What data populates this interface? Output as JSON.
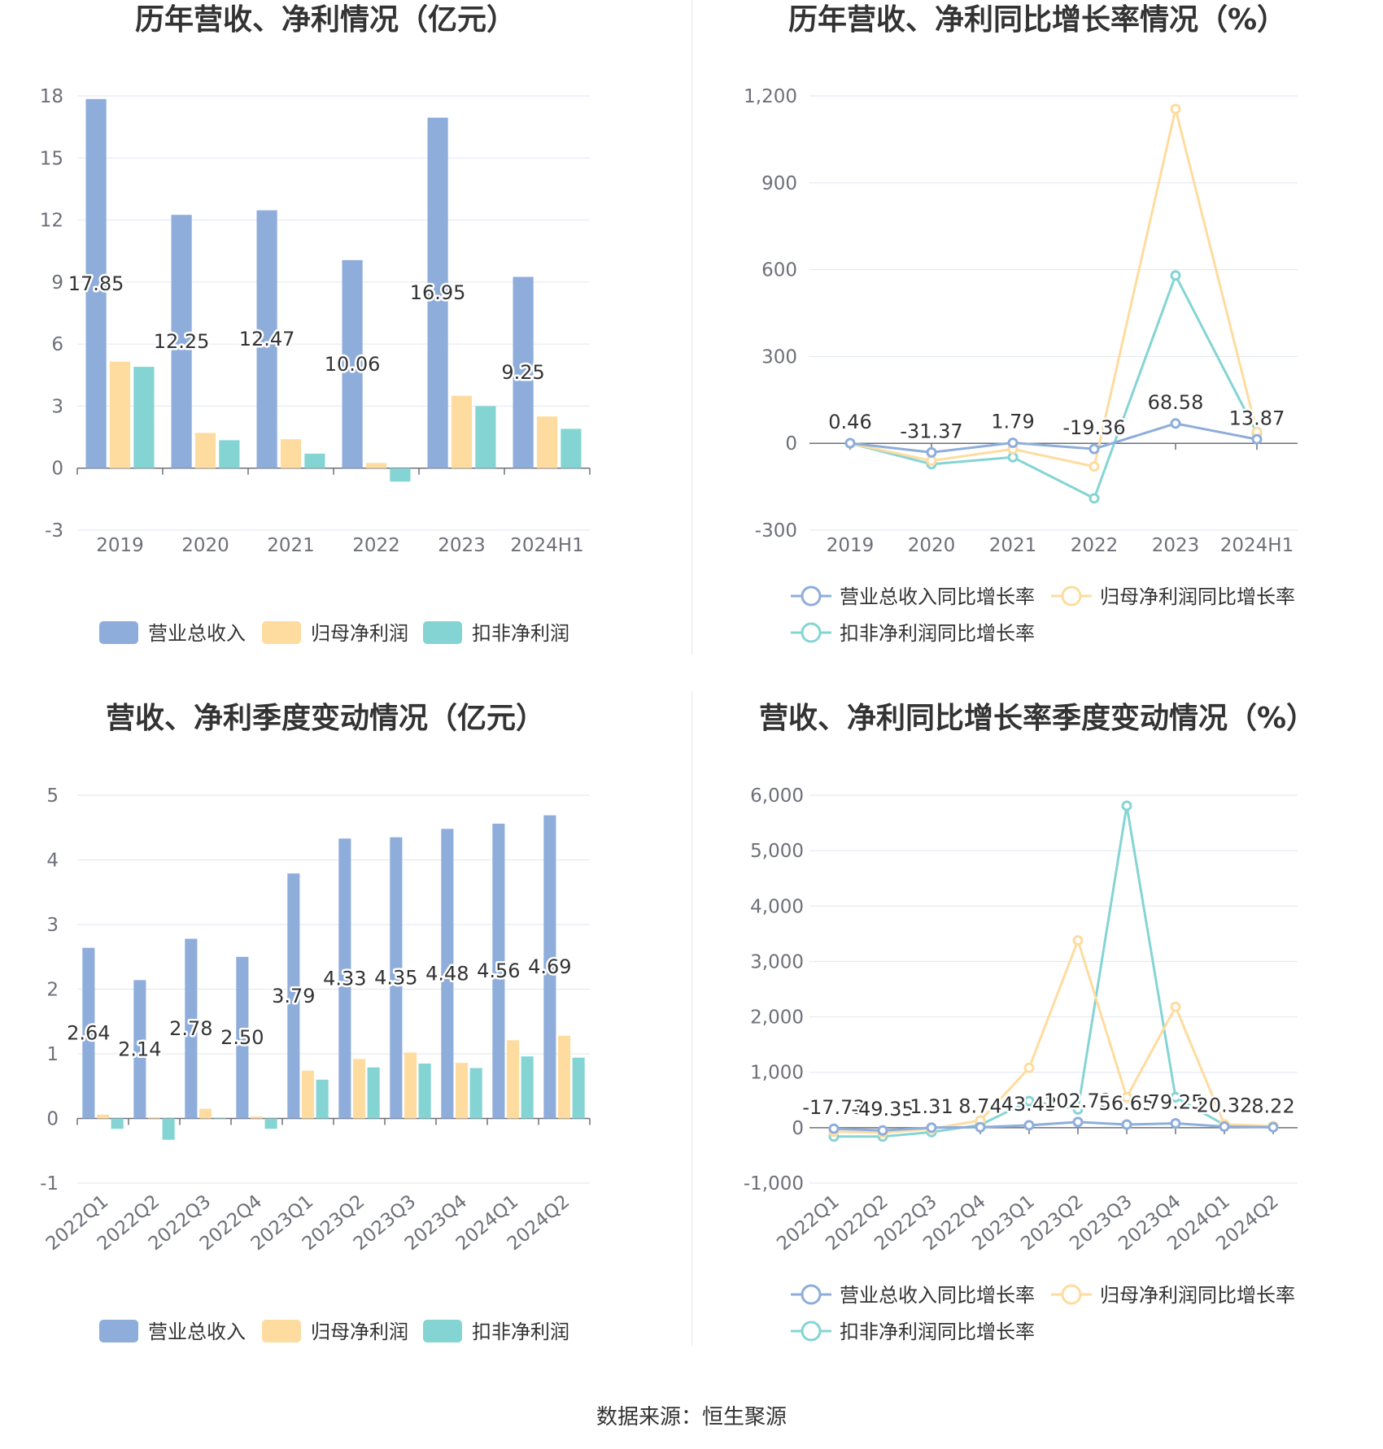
{
  "colors": {
    "revenue": "#8eaddb",
    "net_profit": "#fedc9f",
    "deducted_profit": "#85d4d4"
  },
  "source": "数据来源：恒生聚源",
  "chart_data": [
    {
      "id": "annual-amount",
      "type": "bar",
      "title": "历年营收、净利情况（亿元）",
      "categories": [
        "2019",
        "2020",
        "2021",
        "2022",
        "2023",
        "2024H1"
      ],
      "ylim": [
        -3,
        18
      ],
      "yticks": [
        "18",
        "15",
        "12",
        "9",
        "6",
        "3",
        "0",
        "-3"
      ],
      "ytick_values": [
        18,
        15,
        12,
        9,
        6,
        3,
        0,
        -3
      ],
      "grid": true,
      "legend": "bottom",
      "series": [
        {
          "name": "营业总收入",
          "color": "#8eaddb",
          "values": [
            17.85,
            12.25,
            12.47,
            10.06,
            16.95,
            9.25
          ],
          "labels": [
            "17.85",
            "12.25",
            "12.47",
            "10.06",
            "16.95",
            "9.25"
          ]
        },
        {
          "name": "归母净利润",
          "color": "#fedc9f",
          "values": [
            5.15,
            1.7,
            1.4,
            0.25,
            3.5,
            2.5
          ]
        },
        {
          "name": "扣非净利润",
          "color": "#85d4d4",
          "values": [
            4.9,
            1.35,
            0.7,
            -0.65,
            3.0,
            1.9
          ]
        }
      ]
    },
    {
      "id": "annual-growth",
      "type": "line",
      "title": "历年营收、净利同比增长率情况（%）",
      "categories": [
        "2019",
        "2020",
        "2021",
        "2022",
        "2023",
        "2024H1"
      ],
      "ylim": [
        -300,
        1200
      ],
      "yticks": [
        "1,200",
        "900",
        "600",
        "300",
        "0",
        "-300"
      ],
      "ytick_values": [
        1200,
        900,
        600,
        300,
        0,
        -300
      ],
      "grid": true,
      "legend": "bottom",
      "series": [
        {
          "name": "营业总收入同比增长率",
          "color": "#8eaddb",
          "values": [
            0.46,
            -31.37,
            1.79,
            -19.36,
            68.58,
            13.87
          ],
          "labels": [
            "0.46",
            "-31.37",
            "1.79",
            "-19.36",
            "68.58",
            "13.87"
          ]
        },
        {
          "name": "归母净利润同比增长率",
          "color": "#fedc9f",
          "values": [
            0,
            -60,
            -20,
            -80,
            1155,
            40
          ]
        },
        {
          "name": "扣非净利润同比增长率",
          "color": "#85d4d4",
          "values": [
            0,
            -72,
            -48,
            -190,
            580,
            35
          ]
        }
      ]
    },
    {
      "id": "quarterly-amount",
      "type": "bar",
      "title": "营收、净利季度变动情况（亿元）",
      "categories": [
        "2022Q1",
        "2022Q2",
        "2022Q3",
        "2022Q4",
        "2023Q1",
        "2023Q2",
        "2023Q3",
        "2023Q4",
        "2024Q1",
        "2024Q2"
      ],
      "ylim": [
        -1,
        5
      ],
      "yticks": [
        "5",
        "4",
        "3",
        "2",
        "1",
        "0",
        "-1"
      ],
      "ytick_values": [
        5,
        4,
        3,
        2,
        1,
        0,
        -1
      ],
      "grid": true,
      "legend": "bottom",
      "series": [
        {
          "name": "营业总收入",
          "color": "#8eaddb",
          "values": [
            2.64,
            2.14,
            2.78,
            2.5,
            3.79,
            4.33,
            4.35,
            4.48,
            4.56,
            4.69
          ],
          "labels": [
            "2.64",
            "2.14",
            "2.78",
            "2.50",
            "3.79",
            "4.33",
            "4.35",
            "4.48",
            "4.56",
            "4.69"
          ]
        },
        {
          "name": "归母净利润",
          "color": "#fedc9f",
          "values": [
            0.06,
            0.02,
            0.15,
            0.03,
            0.74,
            0.92,
            1.02,
            0.86,
            1.21,
            1.28
          ]
        },
        {
          "name": "扣非净利润",
          "color": "#85d4d4",
          "values": [
            -0.16,
            -0.33,
            0.0,
            -0.16,
            0.6,
            0.79,
            0.85,
            0.78,
            0.96,
            0.94
          ]
        }
      ]
    },
    {
      "id": "quarterly-growth",
      "type": "line",
      "title": "营收、净利同比增长率季度变动情况（%）",
      "categories": [
        "2022Q1",
        "2022Q2",
        "2022Q3",
        "2022Q4",
        "2023Q1",
        "2023Q2",
        "2023Q3",
        "2023Q4",
        "2024Q1",
        "2024Q2"
      ],
      "ylim": [
        -1000,
        6000
      ],
      "yticks": [
        "6,000",
        "5,000",
        "4,000",
        "3,000",
        "2,000",
        "1,000",
        "0",
        "-1,000"
      ],
      "ytick_values": [
        6000,
        5000,
        4000,
        3000,
        2000,
        1000,
        0,
        -1000
      ],
      "grid": true,
      "legend": "bottom",
      "series": [
        {
          "name": "营业总收入同比增长率",
          "color": "#8eaddb",
          "values": [
            -17.73,
            -49.35,
            1.31,
            8.74,
            43.43,
            102.73,
            56.65,
            79.25,
            20.32,
            8.22
          ],
          "labels": [
            "-17.73",
            "-49.35",
            "1.31",
            "8.74",
            "43.43",
            "102.73",
            "56.65",
            "79.25",
            "20.32",
            "8.22"
          ]
        },
        {
          "name": "归母净利润同比增长率",
          "color": "#fedc9f",
          "values": [
            -70,
            -90,
            -20,
            130,
            1080,
            3380,
            550,
            2180,
            60,
            30
          ]
        },
        {
          "name": "扣非净利润同比增长率",
          "color": "#85d4d4",
          "values": [
            -160,
            -160,
            -80,
            50,
            480,
            330,
            5810,
            550,
            50,
            20
          ]
        }
      ]
    }
  ]
}
